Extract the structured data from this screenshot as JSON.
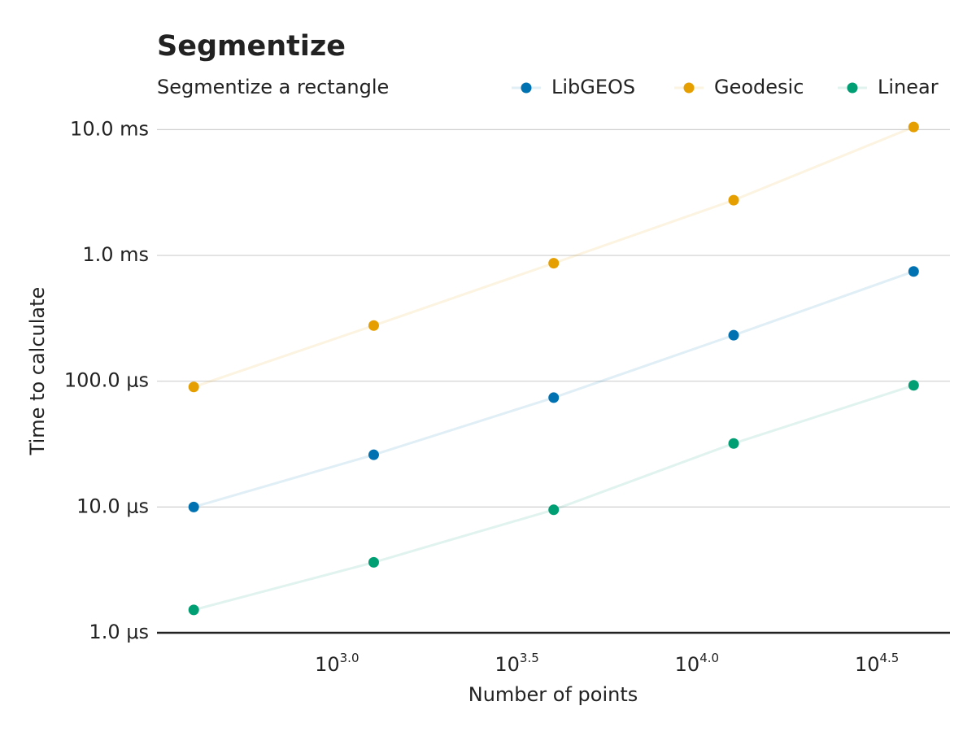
{
  "chart_data": {
    "type": "line",
    "title": "Segmentize",
    "subtitle": "Segmentize a rectangle",
    "x_label": "Number of points",
    "y_label": "Time to calculate",
    "x": [
      400,
      1265,
      4000,
      12649,
      40000
    ],
    "series": [
      {
        "name": "LibGEOS",
        "color": "#0072b2",
        "values": [
          1e-05,
          2.6e-05,
          7.4e-05,
          0.000232,
          0.000746
        ]
      },
      {
        "name": "Geodesic",
        "color": "#e69f00",
        "values": [
          9e-05,
          0.000277,
          0.000867,
          0.00275,
          0.0105
        ]
      },
      {
        "name": "Linear",
        "color": "#009e73",
        "values": [
          1.52e-06,
          3.63e-06,
          9.5e-06,
          3.2e-05,
          9.27e-05
        ]
      }
    ],
    "log_x": true,
    "log_y": true,
    "xlim": [
      316.2,
      50470
    ],
    "ylim": [
      1e-06,
      0.0115
    ],
    "xticks": [
      {
        "value": 1000,
        "label": "10",
        "exponent": "3.0"
      },
      {
        "value": 3162.28,
        "label": "10",
        "exponent": "3.5"
      },
      {
        "value": 10000,
        "label": "10",
        "exponent": "4.0"
      },
      {
        "value": 31622.8,
        "label": "10",
        "exponent": "4.5"
      }
    ],
    "yticks": [
      {
        "value": 1e-06,
        "label": "1.0 μs"
      },
      {
        "value": 1e-05,
        "label": "10.0 μs"
      },
      {
        "value": 0.0001,
        "label": "100.0 μs"
      },
      {
        "value": 0.001,
        "label": "1.0 ms"
      },
      {
        "value": 0.01,
        "label": "10.0 ms"
      }
    ],
    "grid": true
  }
}
